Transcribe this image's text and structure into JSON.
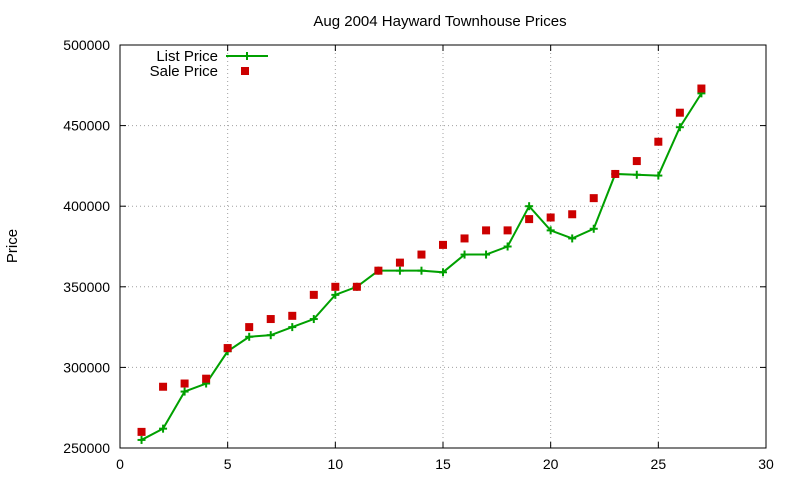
{
  "chart_data": {
    "type": "line",
    "title": "Aug 2004 Hayward Townhouse Prices",
    "xlabel": "",
    "ylabel": "Price",
    "xlim": [
      0,
      30
    ],
    "ylim": [
      250000,
      500000
    ],
    "x_ticks": [
      0,
      5,
      10,
      15,
      20,
      25,
      30
    ],
    "y_ticks": [
      250000,
      300000,
      350000,
      400000,
      450000,
      500000
    ],
    "grid": true,
    "legend_position": "top-left",
    "series": [
      {
        "name": "List Price",
        "style": "lines+crosses",
        "color": "#00a000",
        "x": [
          1,
          2,
          3,
          4,
          5,
          6,
          7,
          8,
          9,
          10,
          11,
          12,
          13,
          14,
          15,
          16,
          17,
          18,
          19,
          20,
          21,
          22,
          23,
          24,
          25,
          26,
          27
        ],
        "values": [
          255000,
          262000,
          285000,
          290000,
          310000,
          319000,
          320000,
          325000,
          330000,
          345000,
          350000,
          360000,
          360000,
          360000,
          359000,
          370000,
          370000,
          375000,
          400000,
          385000,
          380000,
          386000,
          420000,
          419500,
          419000,
          449000,
          470000
        ]
      },
      {
        "name": "Sale Price",
        "style": "squares",
        "color": "#cc0000",
        "x": [
          1,
          2,
          3,
          4,
          5,
          6,
          7,
          8,
          9,
          10,
          11,
          12,
          13,
          14,
          15,
          16,
          17,
          18,
          19,
          20,
          21,
          22,
          23,
          24,
          25,
          26,
          27
        ],
        "values": [
          260000,
          288000,
          290000,
          293000,
          312000,
          325000,
          330000,
          332000,
          345000,
          350000,
          350000,
          360000,
          365000,
          370000,
          376000,
          380000,
          385000,
          385000,
          392000,
          393000,
          395000,
          405000,
          420000,
          428000,
          440000,
          458000,
          473000
        ]
      }
    ]
  }
}
